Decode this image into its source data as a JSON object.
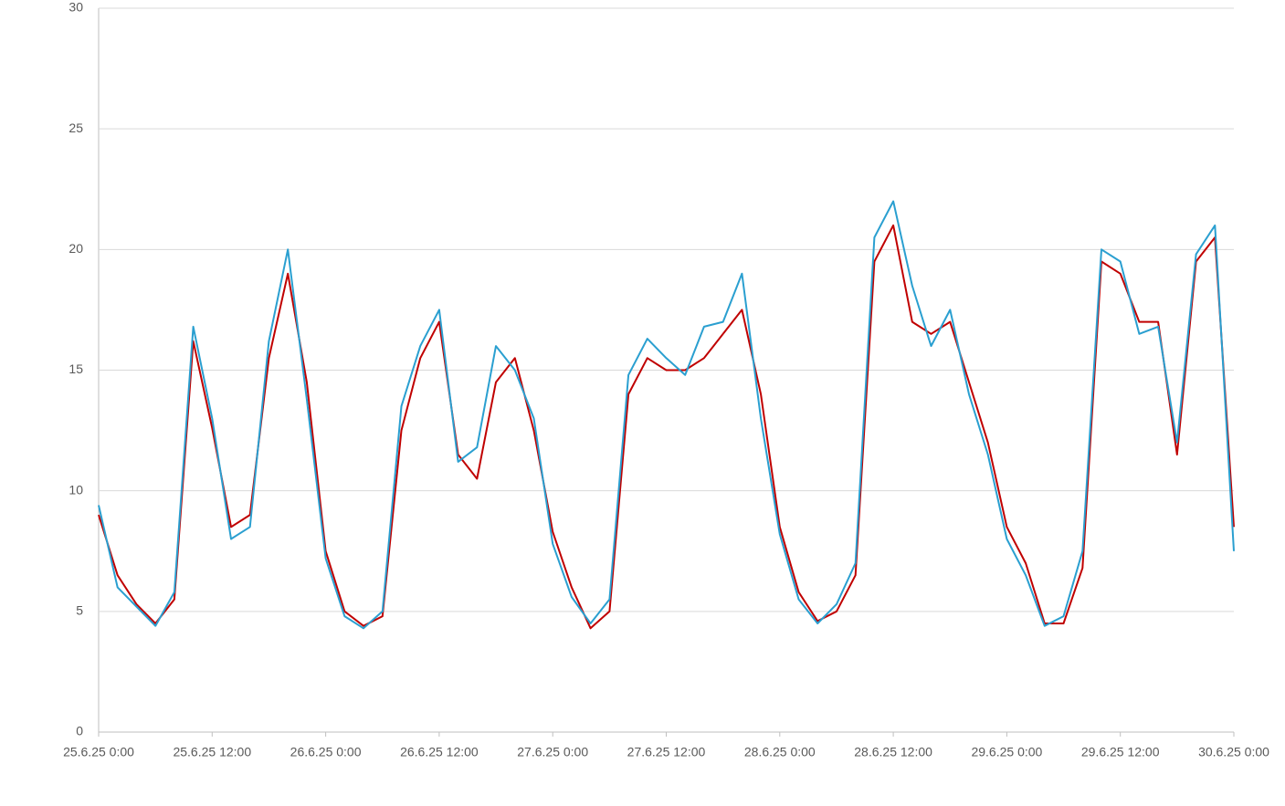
{
  "chart_data": {
    "type": "line",
    "x": [
      0,
      2,
      4,
      6,
      8,
      10,
      12,
      14,
      16,
      18,
      20,
      22,
      24,
      26,
      28,
      30,
      32,
      34,
      36,
      38,
      40,
      42,
      44,
      46,
      48,
      50,
      52,
      54,
      56,
      58,
      60,
      62,
      64,
      66,
      68,
      70,
      72,
      74,
      76,
      78,
      80,
      82,
      84,
      86,
      88,
      90,
      92,
      94,
      96,
      98,
      100,
      102,
      104,
      106,
      108,
      110,
      112,
      114,
      116,
      118,
      120
    ],
    "series": [
      {
        "color": "#c00000",
        "values": [
          9.0,
          6.5,
          5.3,
          4.5,
          5.5,
          16.2,
          12.6,
          8.5,
          9.0,
          15.5,
          19.0,
          14.5,
          7.5,
          5.0,
          4.4,
          4.8,
          12.5,
          15.5,
          17.0,
          11.5,
          10.5,
          14.5,
          15.5,
          12.5,
          8.3,
          6.0,
          4.3,
          5.0,
          14.0,
          15.5,
          15.0,
          15.0,
          15.5,
          16.5,
          17.5,
          14.0,
          8.5,
          5.8,
          4.6,
          5.0,
          6.5,
          19.5,
          21.0,
          17.0,
          16.5,
          17.0,
          14.5,
          12.0,
          8.5,
          7.0,
          4.5,
          4.5,
          6.8,
          19.5,
          19.0,
          17.0,
          17.0,
          11.5,
          19.5,
          20.5,
          8.5
        ]
      },
      {
        "color": "#2a9fd0",
        "values": [
          9.4,
          6.0,
          5.2,
          4.4,
          5.8,
          16.8,
          13.0,
          8.0,
          8.5,
          16.2,
          20.0,
          13.8,
          7.2,
          4.8,
          4.3,
          5.0,
          13.5,
          16.0,
          17.5,
          11.2,
          11.8,
          16.0,
          15.0,
          13.0,
          7.8,
          5.6,
          4.5,
          5.5,
          14.8,
          16.3,
          15.5,
          14.8,
          16.8,
          17.0,
          19.0,
          13.0,
          8.2,
          5.5,
          4.5,
          5.3,
          7.0,
          20.5,
          22.0,
          18.5,
          16.0,
          17.5,
          14.0,
          11.5,
          8.0,
          6.5,
          4.4,
          4.8,
          7.5,
          20.0,
          19.5,
          16.5,
          16.8,
          12.0,
          19.8,
          21.0,
          7.5
        ]
      }
    ],
    "xlim": [
      0,
      120
    ],
    "xticks": [
      {
        "value": 0,
        "label": "25.6.25 0:00"
      },
      {
        "value": 12,
        "label": "25.6.25 12:00"
      },
      {
        "value": 24,
        "label": "26.6.25 0:00"
      },
      {
        "value": 36,
        "label": "26.6.25 12:00"
      },
      {
        "value": 48,
        "label": "27.6.25 0:00"
      },
      {
        "value": 60,
        "label": "27.6.25 12:00"
      },
      {
        "value": 72,
        "label": "28.6.25 0:00"
      },
      {
        "value": 84,
        "label": "28.6.25 12:00"
      },
      {
        "value": 96,
        "label": "29.6.25 0:00"
      },
      {
        "value": 108,
        "label": "29.6.25 12:00"
      },
      {
        "value": 120,
        "label": "30.6.25 0:00"
      }
    ],
    "ylim": [
      0,
      30
    ],
    "yticks": [
      0,
      5,
      10,
      15,
      20,
      25,
      30
    ],
    "grid": true
  }
}
